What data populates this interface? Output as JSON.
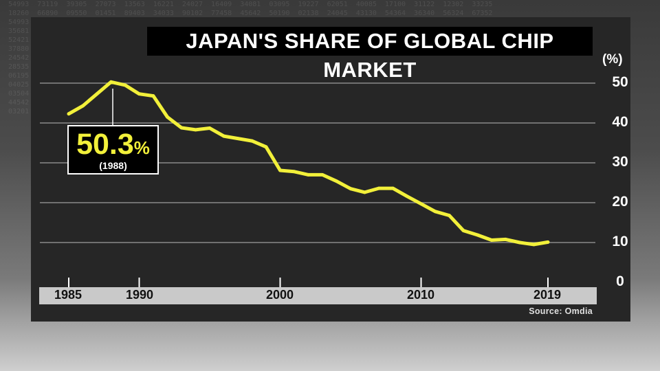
{
  "chart_data": {
    "type": "line",
    "title": "JAPAN'S SHARE OF GLOBAL CHIP MARKET",
    "unit_label": "(%)",
    "source": "Source: Omdia",
    "x_tick_labels": [
      "1985",
      "1990",
      "2000",
      "2010",
      "2019"
    ],
    "y_tick_labels": [
      "50",
      "40",
      "30",
      "20",
      "10",
      "0"
    ],
    "xlim": [
      1985,
      2019
    ],
    "ylim": [
      0,
      50
    ],
    "grid": true,
    "line_color": "#f2f03a",
    "x": [
      1985,
      1986,
      1987,
      1988,
      1989,
      1990,
      1991,
      1992,
      1993,
      1994,
      1995,
      1996,
      1997,
      1998,
      1999,
      2000,
      2001,
      2002,
      2003,
      2004,
      2005,
      2006,
      2007,
      2008,
      2009,
      2010,
      2011,
      2012,
      2013,
      2014,
      2015,
      2016,
      2017,
      2018,
      2019
    ],
    "values": [
      42.3,
      44.3,
      47.3,
      50.3,
      49.5,
      47.3,
      46.8,
      41.5,
      38.8,
      38.3,
      38.7,
      36.7,
      36.1,
      35.5,
      34.0,
      28.1,
      27.8,
      27.0,
      27.0,
      25.4,
      23.5,
      22.6,
      23.6,
      23.6,
      21.6,
      19.7,
      17.8,
      16.8,
      13.0,
      11.9,
      10.6,
      10.8,
      10.0,
      9.5,
      10.1
    ],
    "annotation": {
      "value_text": "50.3",
      "percent_sign": "%",
      "year_text": "(1988)",
      "year": 1988,
      "value": 50.3
    }
  }
}
